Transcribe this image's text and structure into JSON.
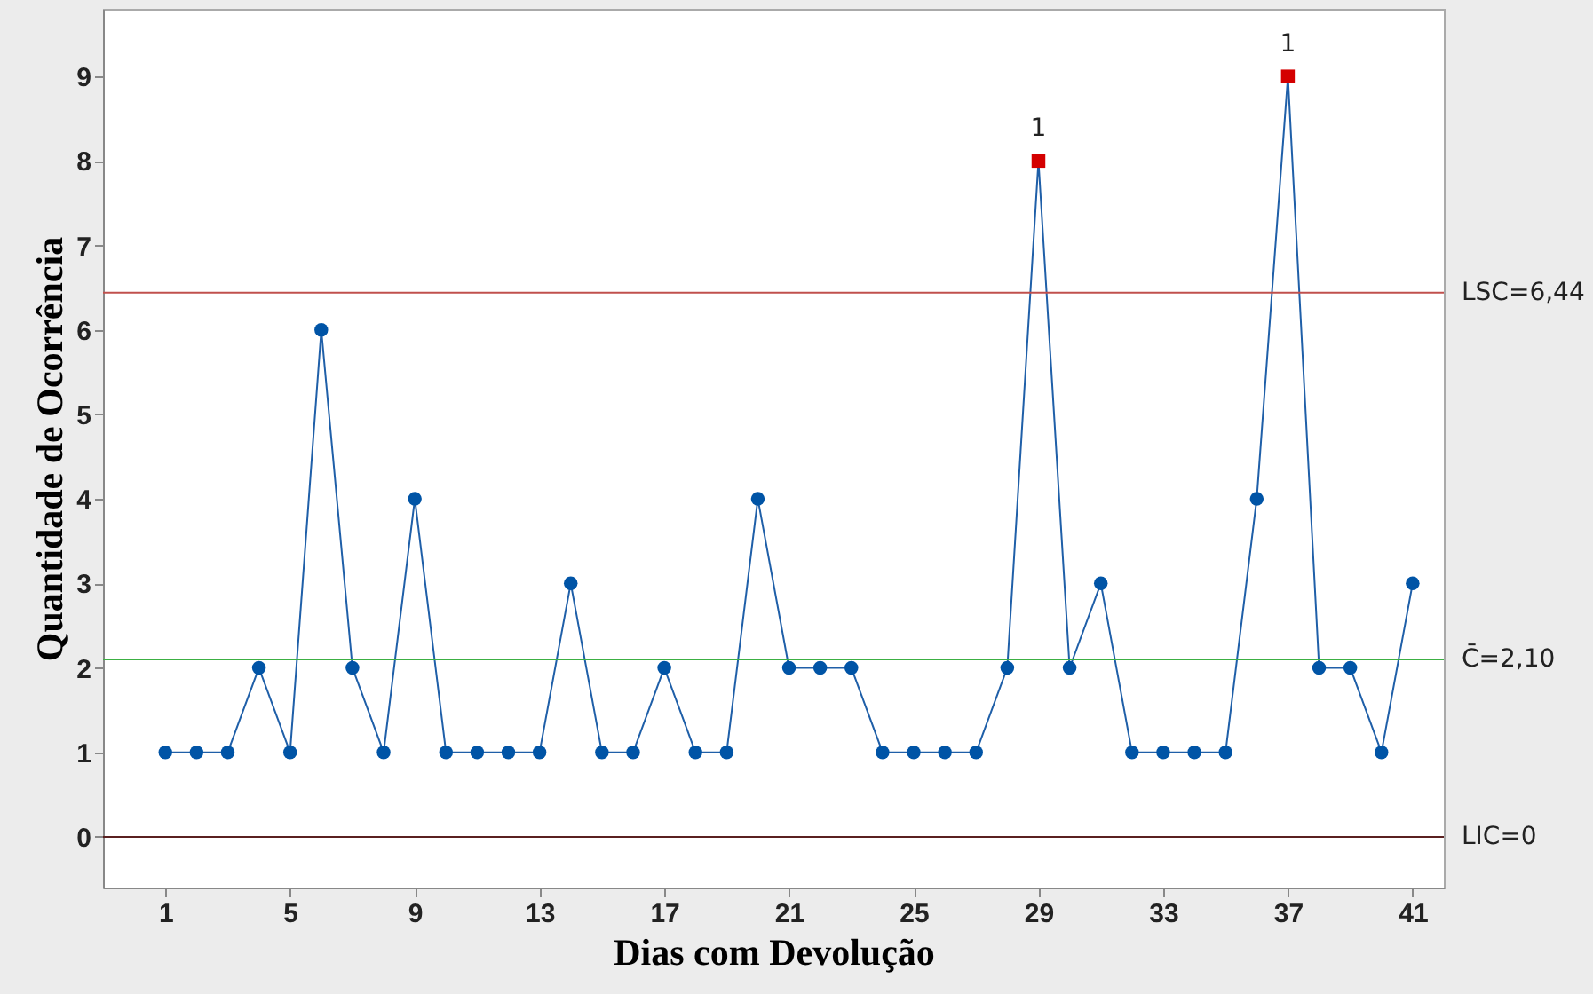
{
  "chart_data": {
    "type": "line",
    "xlabel": "Dias com Devolução",
    "ylabel": "Quantidade de Ocorrência",
    "x": [
      1,
      2,
      3,
      4,
      5,
      6,
      7,
      8,
      9,
      10,
      11,
      12,
      13,
      14,
      15,
      16,
      17,
      18,
      19,
      20,
      21,
      22,
      23,
      24,
      25,
      26,
      27,
      28,
      29,
      30,
      31,
      32,
      33,
      34,
      35,
      36,
      37,
      38,
      39,
      40,
      41
    ],
    "series": [
      {
        "marker": "none",
        "line_style": "solid",
        "color": "#1f5fa8",
        "values": [
          1,
          1,
          1,
          2,
          1,
          6,
          2,
          1,
          4,
          1,
          1,
          1,
          1,
          3,
          1,
          1,
          2,
          1,
          1,
          4,
          2,
          2,
          2,
          1,
          1,
          1,
          1,
          2,
          8,
          2,
          3,
          1,
          1,
          1,
          1,
          4,
          9,
          2,
          2,
          1,
          3
        ]
      },
      {
        "type": "scatter",
        "marker": "circle",
        "color": "#0054a6",
        "values": [
          1,
          1,
          1,
          2,
          1,
          6,
          2,
          1,
          4,
          1,
          1,
          1,
          1,
          3,
          1,
          1,
          2,
          1,
          1,
          4,
          2,
          2,
          2,
          1,
          1,
          1,
          1,
          2,
          null,
          2,
          3,
          1,
          1,
          1,
          1,
          4,
          null,
          2,
          2,
          1,
          3
        ]
      },
      {
        "type": "scatter",
        "marker": "square",
        "color": "#d40000",
        "x": [
          29,
          37
        ],
        "values": [
          8,
          9
        ]
      }
    ],
    "xlim": [
      -1,
      42
    ],
    "xticks": [
      1,
      5,
      9,
      13,
      17,
      21,
      25,
      29,
      33,
      37,
      41
    ],
    "ylim": [
      -0.6,
      9.8
    ],
    "yticks": [
      0,
      1,
      2,
      3,
      4,
      5,
      6,
      7,
      8,
      9
    ],
    "ref_lines": [
      {
        "axis": "y",
        "value": 6.44,
        "label": "LSC=6,44",
        "color": "#c0504d"
      },
      {
        "axis": "y",
        "value": 2.1,
        "label": "C̄=2,10",
        "color": "#3cb043"
      },
      {
        "axis": "y",
        "value": 0,
        "label": "LIC=0",
        "color": "#5a2020"
      }
    ],
    "annotations": [
      {
        "text": "1",
        "x": 29,
        "y": 8
      },
      {
        "text": "1",
        "x": 37,
        "y": 9
      }
    ],
    "grid": false
  }
}
